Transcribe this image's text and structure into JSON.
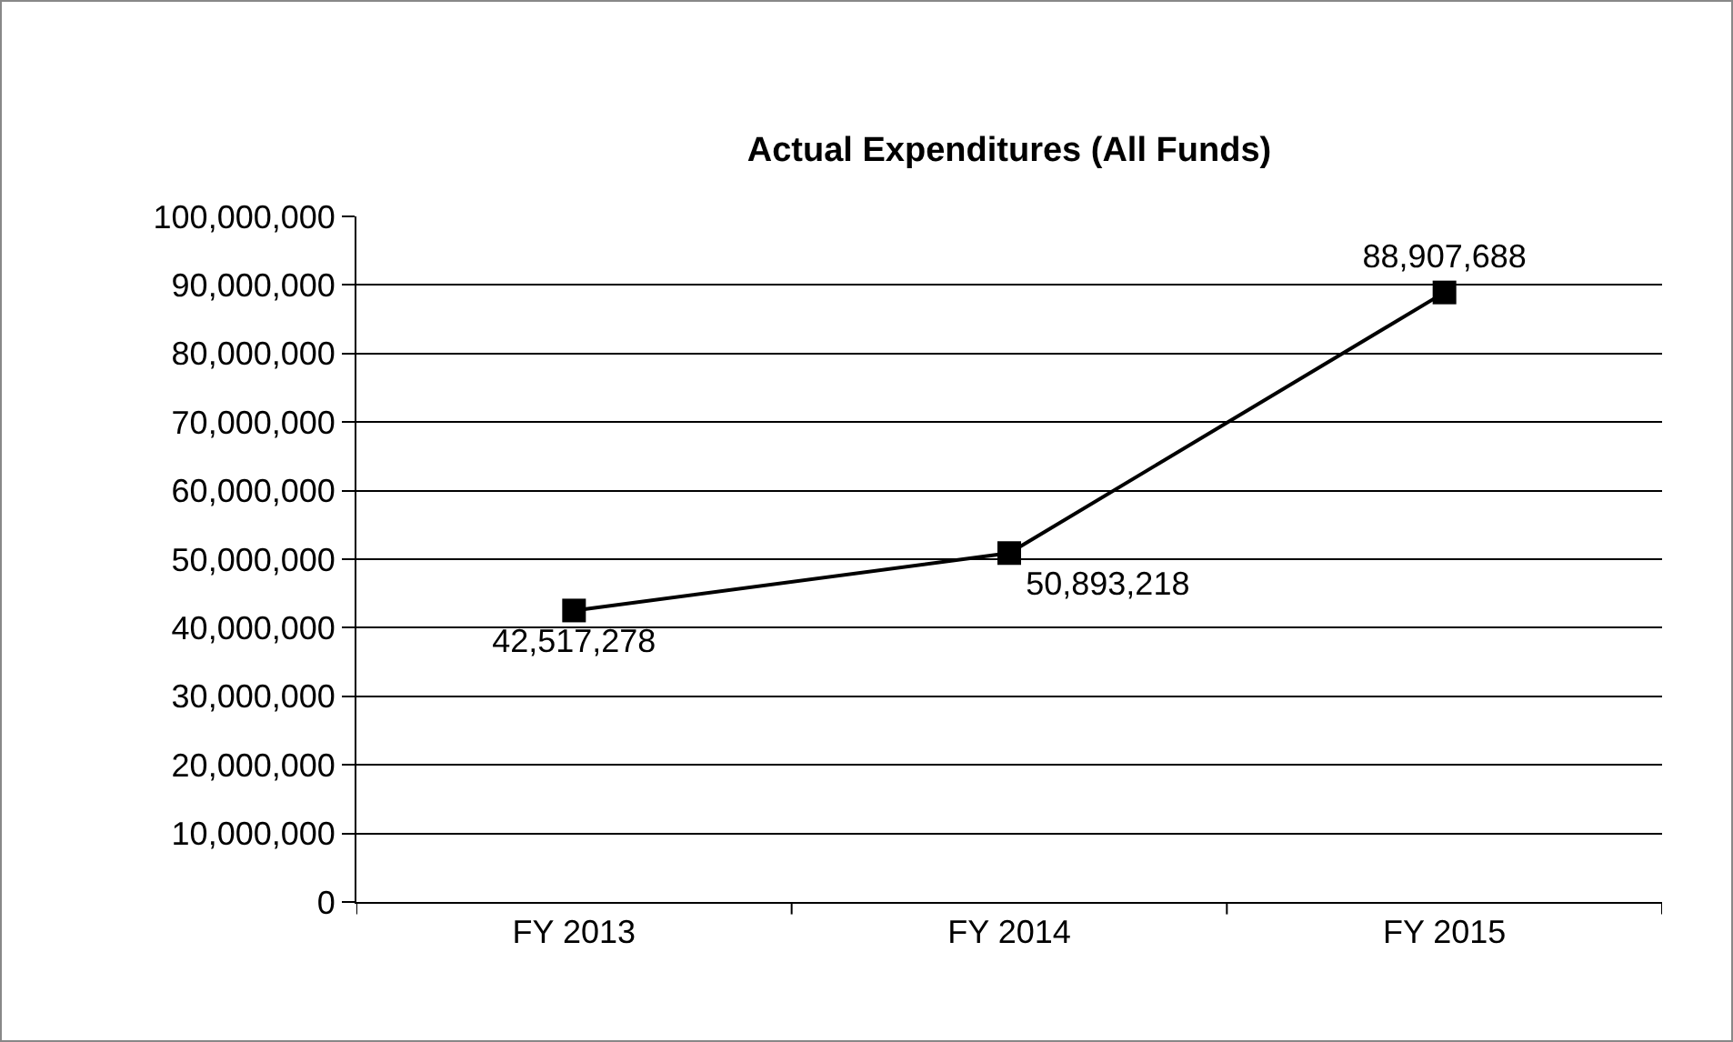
{
  "chart_data": {
    "type": "line",
    "title": "Actual Expenditures (All Funds)",
    "categories": [
      "FY 2013",
      "FY 2014",
      "FY 2015"
    ],
    "series": [
      {
        "color": "#000000",
        "values": [
          42517278,
          50893218,
          88907688
        ],
        "value_labels": [
          "42,517,278",
          "50,893,218",
          "88,907,688"
        ]
      }
    ],
    "ylim": [
      0,
      100000000
    ],
    "yticks": [
      0,
      {
        "value": 10000000,
        "label": "10,000,000"
      },
      {
        "value": 20000000,
        "label": "20,000,000"
      },
      {
        "value": 30000000,
        "label": "30,000,000"
      },
      {
        "value": 40000000,
        "label": "40,000,000"
      },
      {
        "value": 50000000,
        "label": "50,000,000"
      },
      {
        "value": 60000000,
        "label": "60,000,000"
      },
      {
        "value": 70000000,
        "label": "70,000,000"
      },
      {
        "value": 80000000,
        "label": "80,000,000"
      },
      {
        "value": 90000000,
        "label": "90,000,000"
      },
      {
        "value": 100000000,
        "label": "100,000,000"
      }
    ],
    "grid": "y",
    "marker": "square",
    "line_style": "solid"
  }
}
